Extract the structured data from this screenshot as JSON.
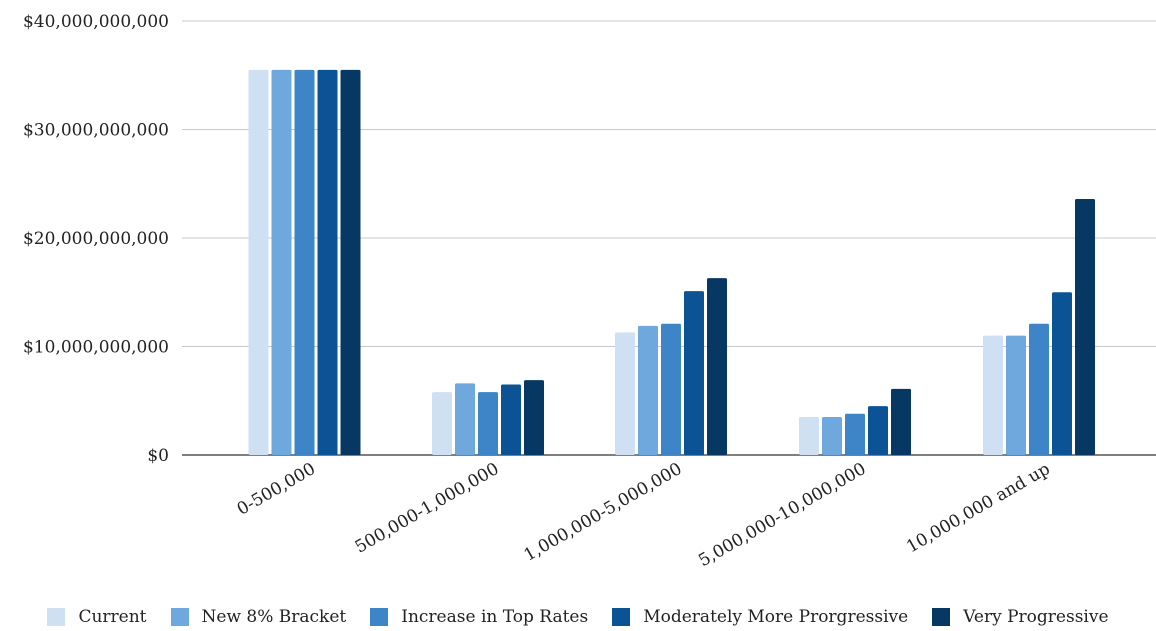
{
  "chart_data": {
    "type": "bar",
    "categories": [
      "0-500,000",
      "500,000-1,000,000",
      "1,000,000-5,000,000",
      "5,000,000-10,000,000",
      "10,000,000 and up"
    ],
    "series": [
      {
        "name": "Current",
        "color": "#cfe0f3",
        "values": [
          35500000000,
          5800000000,
          11300000000,
          3500000000,
          11000000000
        ]
      },
      {
        "name": "New 8% Bracket",
        "color": "#6fa8dc",
        "values": [
          35500000000,
          6600000000,
          11900000000,
          3500000000,
          11000000000
        ]
      },
      {
        "name": "Increase in Top Rates",
        "color": "#3d85c6",
        "values": [
          35500000000,
          5800000000,
          12100000000,
          3800000000,
          12100000000
        ]
      },
      {
        "name": "Moderately More Prorgressive",
        "color": "#0b5394",
        "values": [
          35500000000,
          6500000000,
          15100000000,
          4500000000,
          15000000000
        ]
      },
      {
        "name": "Very Progressive",
        "color": "#073763",
        "values": [
          35500000000,
          6900000000,
          16300000000,
          6100000000,
          23600000000
        ]
      }
    ],
    "ylim": [
      0,
      40000000000
    ],
    "yticks": [
      "$0",
      "$10,000,000,000",
      "$20,000,000,000",
      "$30,000,000,000",
      "$40,000,000,000"
    ],
    "ytick_values": [
      0,
      10000000000,
      20000000000,
      30000000000,
      40000000000
    ],
    "grid": true,
    "legend_position": "bottom"
  }
}
